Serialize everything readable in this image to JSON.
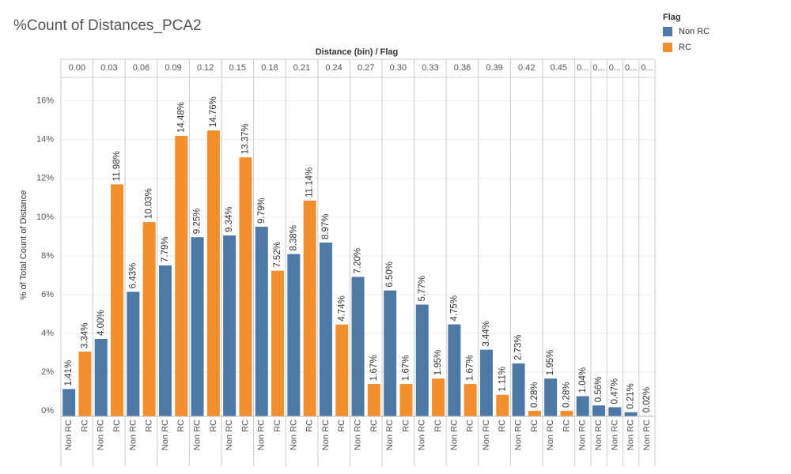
{
  "chart_data": {
    "type": "bar",
    "title": "%Count of Distances_PCA2",
    "header_label": "Distance (bin) / Flag",
    "y_label": "% of Total Count of Distance",
    "legend_title": "Flag",
    "categories": [
      "0.00",
      "0.03",
      "0.06",
      "0.09",
      "0.12",
      "0.15",
      "0.18",
      "0.21",
      "0.24",
      "0.27",
      "0.30",
      "0.33",
      "0.36",
      "0.39",
      "0.42",
      "0.45",
      "0...",
      "0...",
      "0...",
      "0...",
      "0..."
    ],
    "series": [
      {
        "name": "Non RC",
        "color": "#4e79a7",
        "values": [
          1.41,
          4.0,
          6.43,
          7.79,
          9.25,
          9.34,
          9.79,
          8.38,
          8.97,
          7.2,
          6.5,
          5.77,
          4.75,
          3.44,
          2.73,
          1.95,
          1.04,
          0.56,
          0.47,
          0.21,
          0.02
        ],
        "value_labels": [
          "1.41%",
          "4.00%",
          "6.43%",
          "7.79%",
          "9.25%",
          "9.34%",
          "9.79%",
          "8.38%",
          "8.97%",
          "7.20%",
          "6.50%",
          "5.77%",
          "4.75%",
          "3.44%",
          "2.73%",
          "1.95%",
          "1.04%",
          "0.56%",
          "0.47%",
          "0.21%",
          "0.02%"
        ]
      },
      {
        "name": "RC",
        "color": "#f28e2b",
        "values": [
          3.34,
          11.98,
          10.03,
          14.48,
          14.76,
          13.37,
          7.52,
          11.14,
          4.74,
          1.67,
          1.67,
          1.95,
          1.67,
          1.11,
          0.28,
          0.28,
          null,
          null,
          null,
          null,
          null
        ],
        "value_labels": [
          "3.34%",
          "11.98%",
          "10.03%",
          "14.48%",
          "14.76%",
          "13.37%",
          "7.52%",
          "11.14%",
          "4.74%",
          "1.67%",
          "1.67%",
          "1.95%",
          "1.67%",
          "1.11%",
          "0.28%",
          "0.28%",
          null,
          null,
          null,
          null,
          null
        ]
      }
    ],
    "ylim": [
      0,
      17.5
    ],
    "yticks": [
      {
        "value": 0,
        "label": "0%"
      },
      {
        "value": 2,
        "label": "2%"
      },
      {
        "value": 4,
        "label": "4%"
      },
      {
        "value": 6,
        "label": "6%"
      },
      {
        "value": 8,
        "label": "8%"
      },
      {
        "value": 10,
        "label": "10%"
      },
      {
        "value": 12,
        "label": "12%"
      },
      {
        "value": 14,
        "label": "14%"
      },
      {
        "value": 16,
        "label": "16%"
      }
    ],
    "grid": true
  }
}
